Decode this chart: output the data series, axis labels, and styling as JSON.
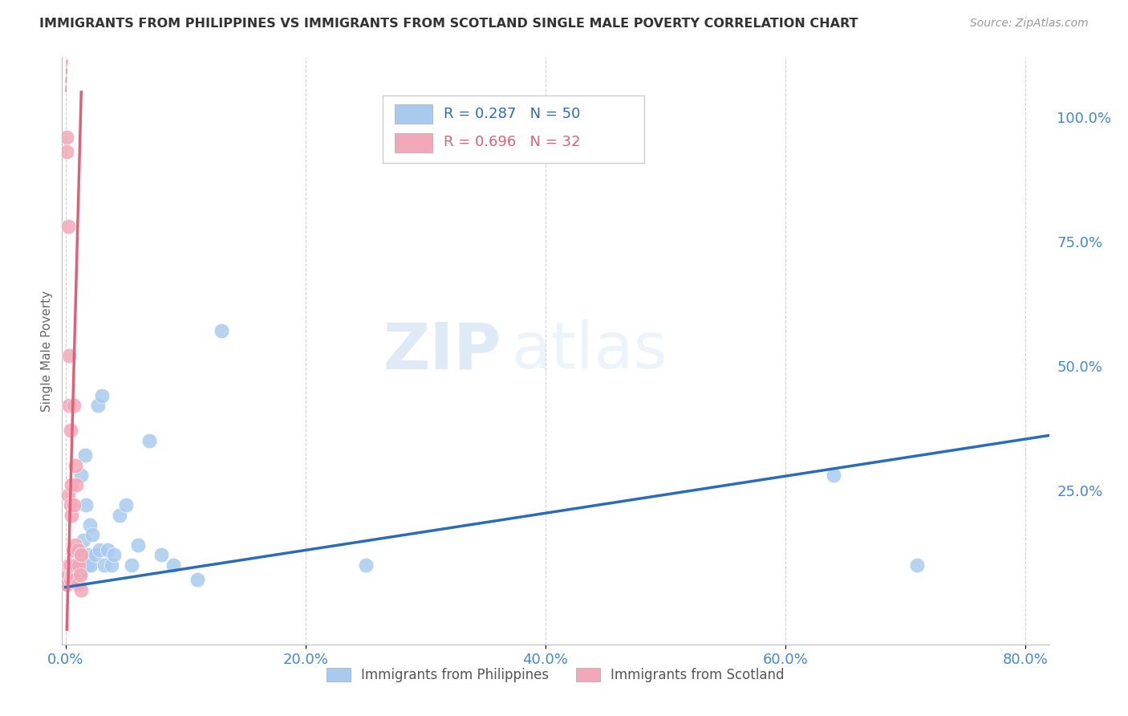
{
  "title": "IMMIGRANTS FROM PHILIPPINES VS IMMIGRANTS FROM SCOTLAND SINGLE MALE POVERTY CORRELATION CHART",
  "source": "Source: ZipAtlas.com",
  "ylabel": "Single Male Poverty",
  "right_yticks": [
    0.0,
    0.25,
    0.5,
    0.75,
    1.0
  ],
  "right_yticklabels": [
    "",
    "25.0%",
    "50.0%",
    "75.0%",
    "100.0%"
  ],
  "xlim": [
    -0.003,
    0.82
  ],
  "ylim": [
    -0.06,
    1.12
  ],
  "legend1_r": "0.287",
  "legend1_n": "50",
  "legend2_r": "0.696",
  "legend2_n": "32",
  "philippines_color": "#A8CAEE",
  "scotland_color": "#F2A8B8",
  "trendline_philippines_color": "#2B6CB8",
  "trendline_scotland_color": "#E0607A",
  "watermark_zip": "ZIP",
  "watermark_atlas": "atlas",
  "phil_trend_x0": 0.0,
  "phil_trend_x1": 0.82,
  "phil_trend_y0": 0.055,
  "phil_trend_y1": 0.36,
  "scot_trend_x0": 0.001,
  "scot_trend_x1": 0.013,
  "scot_trend_y0": -0.03,
  "scot_trend_y1": 1.05,
  "philippines_x": [
    0.001,
    0.001,
    0.002,
    0.002,
    0.003,
    0.003,
    0.004,
    0.004,
    0.005,
    0.005,
    0.006,
    0.006,
    0.007,
    0.008,
    0.008,
    0.009,
    0.01,
    0.01,
    0.011,
    0.012,
    0.013,
    0.014,
    0.015,
    0.016,
    0.017,
    0.018,
    0.019,
    0.02,
    0.021,
    0.022,
    0.025,
    0.027,
    0.028,
    0.03,
    0.032,
    0.035,
    0.038,
    0.04,
    0.045,
    0.05,
    0.055,
    0.06,
    0.07,
    0.08,
    0.09,
    0.11,
    0.13,
    0.25,
    0.64,
    0.71
  ],
  "philippines_y": [
    0.08,
    0.06,
    0.07,
    0.09,
    0.08,
    0.1,
    0.07,
    0.09,
    0.08,
    0.1,
    0.09,
    0.11,
    0.08,
    0.07,
    0.1,
    0.09,
    0.08,
    0.12,
    0.1,
    0.08,
    0.28,
    0.1,
    0.15,
    0.32,
    0.22,
    0.1,
    0.12,
    0.18,
    0.1,
    0.16,
    0.12,
    0.42,
    0.13,
    0.44,
    0.1,
    0.13,
    0.1,
    0.12,
    0.2,
    0.22,
    0.1,
    0.14,
    0.35,
    0.12,
    0.1,
    0.07,
    0.57,
    0.1,
    0.28,
    0.1
  ],
  "scotland_x": [
    0.001,
    0.001,
    0.001,
    0.002,
    0.002,
    0.002,
    0.003,
    0.003,
    0.003,
    0.004,
    0.004,
    0.004,
    0.004,
    0.005,
    0.005,
    0.005,
    0.006,
    0.006,
    0.007,
    0.007,
    0.007,
    0.008,
    0.008,
    0.008,
    0.009,
    0.009,
    0.01,
    0.01,
    0.011,
    0.012,
    0.013,
    0.013
  ],
  "scotland_y": [
    0.96,
    0.93,
    0.06,
    0.78,
    0.24,
    0.08,
    0.52,
    0.42,
    0.1,
    0.37,
    0.22,
    0.1,
    0.07,
    0.26,
    0.2,
    0.08,
    0.13,
    0.08,
    0.42,
    0.22,
    0.1,
    0.3,
    0.14,
    0.07,
    0.26,
    0.1,
    0.13,
    0.06,
    0.1,
    0.08,
    0.12,
    0.05
  ]
}
